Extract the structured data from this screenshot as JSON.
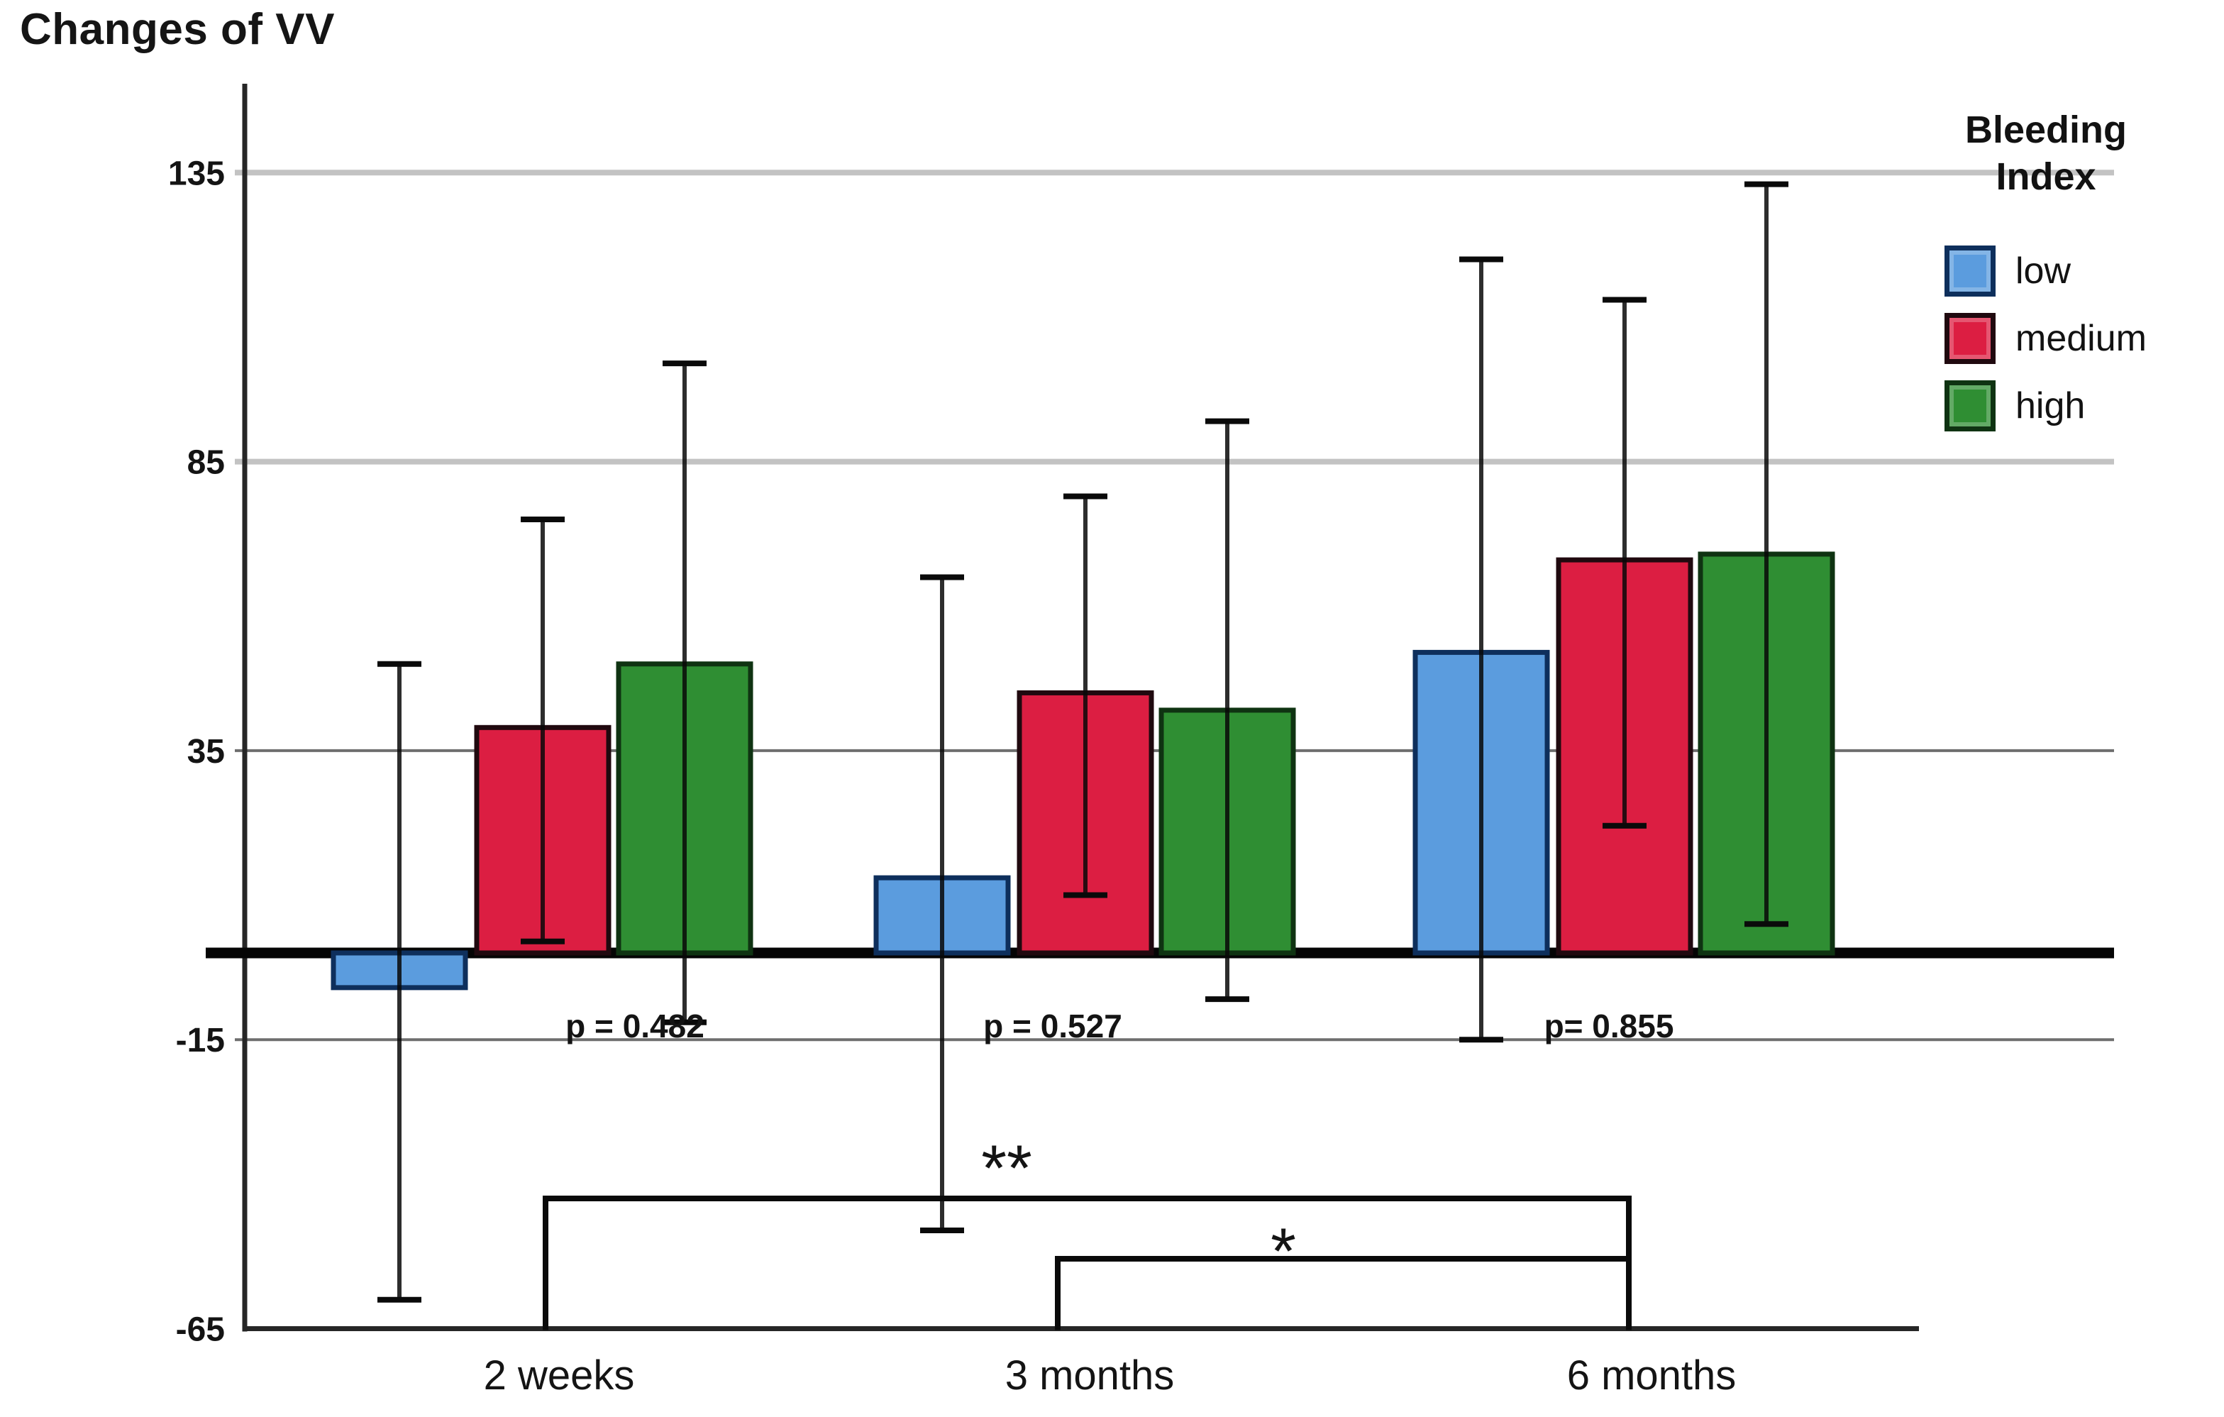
{
  "title": "Changes of VV",
  "legend": {
    "title_lines": [
      "Bleeding",
      "Index"
    ],
    "items": [
      {
        "label": "low",
        "color": "#5B9CDE",
        "border": "#0E2F5C"
      },
      {
        "label": "medium",
        "color": "#DC1E42",
        "border": "#20090F"
      },
      {
        "label": "high",
        "color": "#2F8E33",
        "border": "#0F3312"
      }
    ]
  },
  "chart_data": {
    "type": "bar",
    "title": "Changes of VV",
    "categories": [
      "2 weeks",
      "3 months",
      "6 months"
    ],
    "series": [
      {
        "name": "low",
        "color": "#5B9CDE",
        "border": "#0E2F5C",
        "values": [
          -6,
          13,
          52
        ],
        "error_top": [
          50,
          65,
          120
        ],
        "error_bottom": [
          -60,
          -48,
          -15
        ]
      },
      {
        "name": "medium",
        "color": "#DC1E42",
        "border": "#20090F",
        "values": [
          39,
          45,
          68
        ],
        "error_top": [
          75,
          79,
          113
        ],
        "error_bottom": [
          2,
          10,
          22
        ]
      },
      {
        "name": "high",
        "color": "#2F8E33",
        "border": "#0F3312",
        "values": [
          50,
          42,
          69
        ],
        "error_top": [
          102,
          92,
          133
        ],
        "error_bottom": [
          -12,
          -8,
          5
        ]
      }
    ],
    "xlabel": "",
    "ylabel": "",
    "yticks": [
      135,
      85,
      35,
      -15,
      -65
    ],
    "ylim": [
      -65,
      150
    ],
    "grid": true,
    "legend_position": "right",
    "legend_title": "Bleeding Index",
    "p_values": [
      {
        "category": "2 weeks",
        "text": "p = 0.482"
      },
      {
        "category": "3 months",
        "text": "p = 0.527"
      },
      {
        "category": "6 months",
        "text": "p= 0.855"
      }
    ],
    "significance": [
      {
        "label": "**",
        "from": "2 weeks",
        "to": "6 months"
      },
      {
        "label": "*",
        "from": "3 months",
        "to": "6 months"
      }
    ]
  }
}
